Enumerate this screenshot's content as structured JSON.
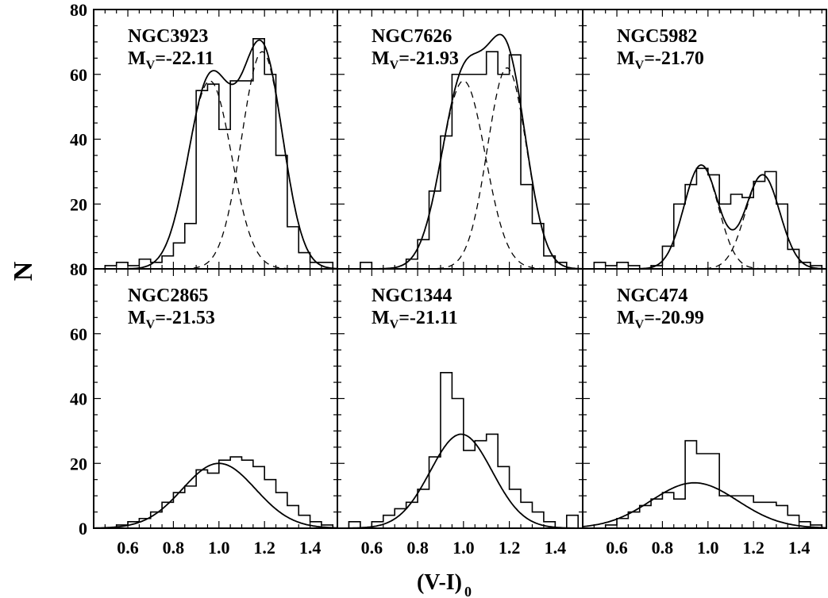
{
  "figure": {
    "ylabel": "N",
    "xlabel": "(V-I)",
    "xlabel_subscript": "0"
  },
  "chart_data": [
    {
      "type": "bar",
      "name": "NGC3923",
      "mag_prefix": "M",
      "mag_sub": "V",
      "mag_value": "=-22.11",
      "xlim": [
        0.45,
        1.52
      ],
      "ylim": [
        0,
        80
      ],
      "yticks": [
        0,
        20,
        40,
        60,
        80
      ],
      "xticks": [],
      "bin_width": 0.05,
      "bins": [
        0.45,
        0.5,
        0.55,
        0.6,
        0.65,
        0.7,
        0.75,
        0.8,
        0.85,
        0.9,
        0.95,
        1.0,
        1.05,
        1.1,
        1.15,
        1.2,
        1.25,
        1.3,
        1.35,
        1.4,
        1.45,
        1.5
      ],
      "counts": [
        0,
        1,
        2,
        1,
        3,
        2,
        4,
        8,
        14,
        55,
        57,
        43,
        58,
        58,
        71,
        60,
        35,
        13,
        5,
        2,
        2,
        0
      ],
      "fits": [
        {
          "style": "solid",
          "components": [
            [
              58,
              0.96,
              0.095
            ],
            [
              67,
              1.19,
              0.09
            ]
          ]
        },
        {
          "style": "dashed",
          "components": [
            [
              58,
              0.96,
              0.095
            ]
          ]
        },
        {
          "style": "dashed",
          "components": [
            [
              67,
              1.19,
              0.09
            ]
          ]
        }
      ]
    },
    {
      "type": "bar",
      "name": "NGC7626",
      "mag_prefix": "M",
      "mag_sub": "V",
      "mag_value": "=-21.93",
      "xlim": [
        0.45,
        1.52
      ],
      "ylim": [
        0,
        80
      ],
      "yticks": [],
      "xticks": [],
      "bin_width": 0.05,
      "bins": [
        0.45,
        0.5,
        0.55,
        0.6,
        0.65,
        0.7,
        0.75,
        0.8,
        0.85,
        0.9,
        0.95,
        1.0,
        1.05,
        1.1,
        1.15,
        1.2,
        1.25,
        1.3,
        1.35,
        1.4,
        1.45,
        1.5
      ],
      "counts": [
        0,
        0,
        2,
        0,
        0,
        0,
        3,
        9,
        24,
        41,
        60,
        60,
        60,
        67,
        60,
        66,
        26,
        14,
        4,
        2,
        0,
        0
      ],
      "fits": [
        {
          "style": "solid",
          "components": [
            [
              58,
              1.0,
              0.095
            ],
            [
              62,
              1.19,
              0.085
            ]
          ]
        },
        {
          "style": "dashed",
          "components": [
            [
              58,
              1.0,
              0.095
            ]
          ]
        },
        {
          "style": "dashed",
          "components": [
            [
              62,
              1.19,
              0.085
            ]
          ]
        }
      ]
    },
    {
      "type": "bar",
      "name": "NGC5982",
      "mag_prefix": "M",
      "mag_sub": "V",
      "mag_value": "=-21.70",
      "xlim": [
        0.45,
        1.52
      ],
      "ylim": [
        0,
        80
      ],
      "yticks": [],
      "xticks": [],
      "bin_width": 0.05,
      "bins": [
        0.45,
        0.5,
        0.55,
        0.6,
        0.65,
        0.7,
        0.75,
        0.8,
        0.85,
        0.9,
        0.95,
        1.0,
        1.05,
        1.1,
        1.15,
        1.2,
        1.25,
        1.3,
        1.35,
        1.4,
        1.45,
        1.5
      ],
      "counts": [
        0,
        2,
        1,
        2,
        1,
        0,
        1,
        7,
        20,
        26,
        31,
        29,
        20,
        23,
        22,
        27,
        30,
        20,
        6,
        2,
        1,
        0
      ],
      "fits": [
        {
          "style": "solid",
          "components": [
            [
              32,
              0.97,
              0.075
            ],
            [
              29,
              1.24,
              0.075
            ]
          ]
        },
        {
          "style": "dashed",
          "components": [
            [
              32,
              0.97,
              0.075
            ]
          ]
        },
        {
          "style": "dashed",
          "components": [
            [
              29,
              1.24,
              0.075
            ]
          ]
        }
      ]
    },
    {
      "type": "bar",
      "name": "NGC2865",
      "mag_prefix": "M",
      "mag_sub": "V",
      "mag_value": "=-21.53",
      "xlim": [
        0.45,
        1.52
      ],
      "ylim": [
        0,
        80
      ],
      "yticks": [
        0,
        20,
        40,
        60,
        80
      ],
      "xticks": [
        0.6,
        0.8,
        1.0,
        1.2,
        1.4
      ],
      "bin_width": 0.05,
      "bins": [
        0.45,
        0.5,
        0.55,
        0.6,
        0.65,
        0.7,
        0.75,
        0.8,
        0.85,
        0.9,
        0.95,
        1.0,
        1.05,
        1.1,
        1.15,
        1.2,
        1.25,
        1.3,
        1.35,
        1.4,
        1.45,
        1.5
      ],
      "counts": [
        0,
        0,
        1,
        2,
        3,
        5,
        8,
        11,
        13,
        18,
        17,
        21,
        22,
        21,
        19,
        15,
        11,
        7,
        4,
        2,
        1,
        0
      ],
      "fits": [
        {
          "style": "solid",
          "components": [
            [
              20,
              1.0,
              0.16
            ]
          ]
        }
      ]
    },
    {
      "type": "bar",
      "name": "NGC1344",
      "mag_prefix": "M",
      "mag_sub": "V",
      "mag_value": "=-21.11",
      "xlim": [
        0.45,
        1.52
      ],
      "ylim": [
        0,
        80
      ],
      "yticks": [],
      "xticks": [
        0.6,
        0.8,
        1.0,
        1.2,
        1.4
      ],
      "bin_width": 0.05,
      "bins": [
        0.45,
        0.5,
        0.55,
        0.6,
        0.65,
        0.7,
        0.75,
        0.8,
        0.85,
        0.9,
        0.95,
        1.0,
        1.05,
        1.1,
        1.15,
        1.2,
        1.25,
        1.3,
        1.35,
        1.4,
        1.45,
        1.5
      ],
      "counts": [
        0,
        2,
        0,
        2,
        4,
        6,
        8,
        12,
        22,
        48,
        40,
        24,
        27,
        29,
        19,
        12,
        8,
        5,
        2,
        0,
        4,
        0
      ],
      "fits": [
        {
          "style": "solid",
          "components": [
            [
              29,
              0.99,
              0.135
            ]
          ]
        }
      ]
    },
    {
      "type": "bar",
      "name": "NGC474",
      "mag_prefix": "M",
      "mag_sub": "V",
      "mag_value": "=-20.99",
      "xlim": [
        0.45,
        1.52
      ],
      "ylim": [
        0,
        80
      ],
      "yticks": [],
      "xticks": [
        0.6,
        0.8,
        1.0,
        1.2,
        1.4
      ],
      "bin_width": 0.05,
      "bins": [
        0.45,
        0.5,
        0.55,
        0.6,
        0.65,
        0.7,
        0.75,
        0.8,
        0.85,
        0.9,
        0.95,
        1.0,
        1.05,
        1.1,
        1.15,
        1.2,
        1.25,
        1.3,
        1.35,
        1.4,
        1.45,
        1.5
      ],
      "counts": [
        0,
        0,
        1,
        3,
        5,
        7,
        9,
        11,
        9,
        27,
        23,
        23,
        10,
        10,
        10,
        8,
        8,
        7,
        4,
        2,
        1,
        0
      ],
      "fits": [
        {
          "style": "solid",
          "components": [
            [
              14,
              0.94,
              0.19
            ]
          ]
        }
      ]
    }
  ]
}
